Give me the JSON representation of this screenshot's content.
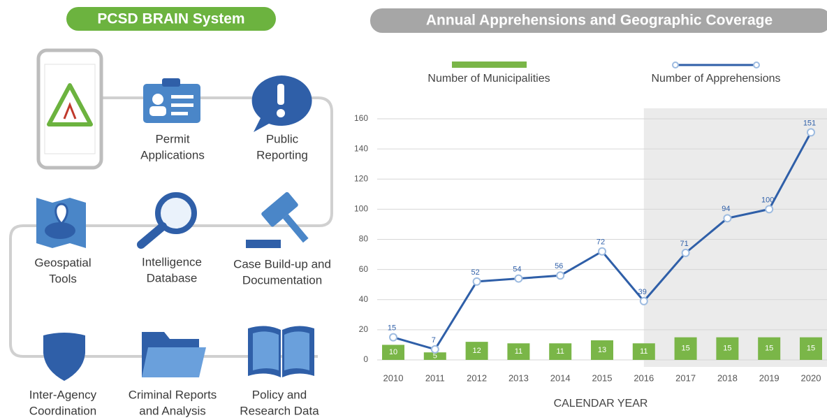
{
  "diagram": {
    "title": "PCSD BRAIN System",
    "nodes": [
      {
        "label": [
          "Permit",
          "Applications"
        ]
      },
      {
        "label": [
          "Public",
          "Reporting"
        ]
      },
      {
        "label": [
          "Geospatial",
          "Tools"
        ]
      },
      {
        "label": [
          "Intelligence",
          "Database"
        ]
      },
      {
        "label": [
          "Case Build-up and",
          "Documentation"
        ]
      },
      {
        "label": [
          "Inter-Agency",
          "Coordination"
        ]
      },
      {
        "label": [
          "Criminal Reports",
          "and Analysis"
        ]
      },
      {
        "label": [
          "Policy and",
          "Research Data"
        ]
      }
    ]
  },
  "chart_data": {
    "type": "bar",
    "title": "Annual Apprehensions and Geographic Coverage",
    "x_label": "CALENDAR YEAR",
    "categories": [
      "2010",
      "2011",
      "2012",
      "2013",
      "2014",
      "2015",
      "2016",
      "2017",
      "2018",
      "2019",
      "2020"
    ],
    "series": [
      {
        "name": "Number of Municipalities",
        "type": "bar",
        "color": "#7ab648",
        "values": [
          10,
          5,
          12,
          11,
          11,
          13,
          11,
          15,
          15,
          15,
          15
        ]
      },
      {
        "name": "Number of Apprehensions",
        "type": "line",
        "color": "#2f5fa8",
        "values": [
          15,
          7,
          52,
          54,
          56,
          72,
          39,
          71,
          94,
          100,
          151
        ]
      }
    ],
    "ylim": [
      0,
      160
    ],
    "yticks": [
      0,
      20,
      40,
      60,
      80,
      100,
      120,
      140,
      160
    ],
    "grid": true
  }
}
